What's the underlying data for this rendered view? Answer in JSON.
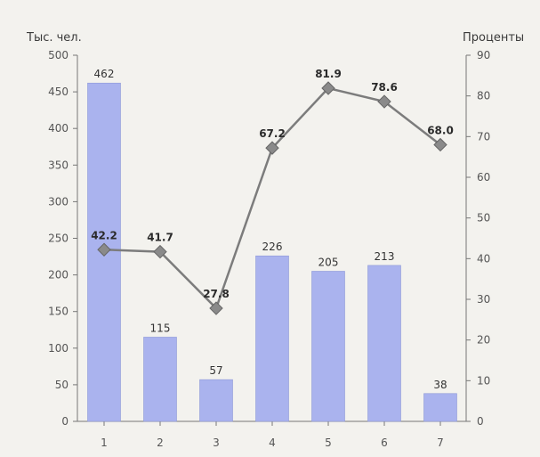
{
  "chart_data": {
    "type": "bar",
    "left_axis_title": "Тыс. чел.",
    "right_axis_title": "Проценты",
    "categories": [
      "1",
      "2",
      "3",
      "4",
      "5",
      "6",
      "7"
    ],
    "left_ylim": [
      0,
      500
    ],
    "left_ticks": [
      0,
      50,
      100,
      150,
      200,
      250,
      300,
      350,
      400,
      450,
      500
    ],
    "right_ylim": [
      0,
      90
    ],
    "right_ticks": [
      0,
      10,
      20,
      30,
      40,
      50,
      60,
      70,
      80,
      90
    ],
    "bars": {
      "values": [
        462,
        115,
        57,
        226,
        205,
        213,
        38
      ],
      "labels": [
        "462",
        "115",
        "57",
        "226",
        "205",
        "213",
        "38"
      ],
      "color": "#aab3ee"
    },
    "line": {
      "values": [
        42.2,
        41.7,
        27.8,
        67.2,
        81.9,
        78.6,
        68.0
      ],
      "labels": [
        "42.2",
        "41.7",
        "27.8",
        "67.2",
        "81.9",
        "78.6",
        "68.0"
      ],
      "color": "#7c7c7c",
      "marker": "diamond"
    },
    "grid": false,
    "legend": "none"
  }
}
